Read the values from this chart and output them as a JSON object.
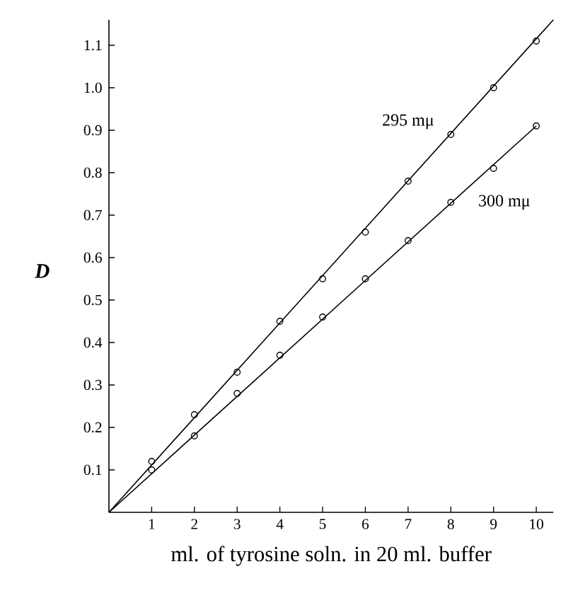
{
  "chart_data": {
    "type": "scatter",
    "xlabel": "ml. of tyrosine soln. in 20 ml. buffer",
    "ylabel": "D",
    "xlim": [
      0,
      10.4
    ],
    "ylim": [
      0,
      1.16
    ],
    "xticks": [
      1,
      2,
      3,
      4,
      5,
      6,
      7,
      8,
      9,
      10
    ],
    "yticks": [
      0.1,
      0.2,
      0.3,
      0.4,
      0.5,
      0.6,
      0.7,
      0.8,
      0.9,
      {
        "value": 1.0,
        "label": "1.0"
      },
      1.1
    ],
    "marker": "circle",
    "grid": false,
    "series": [
      {
        "color": "#000000",
        "x": [
          1,
          2,
          3,
          4,
          5,
          6,
          7,
          8,
          9,
          10
        ],
        "values": [
          0.12,
          0.23,
          0.33,
          0.45,
          0.55,
          0.66,
          0.78,
          0.89,
          1.0,
          1.11
        ]
      },
      {
        "color": "#000000",
        "x": [
          1,
          2,
          3,
          4,
          5,
          6,
          7,
          8,
          9,
          10
        ],
        "values": [
          0.1,
          0.18,
          0.28,
          0.37,
          0.46,
          0.55,
          0.64,
          0.73,
          0.81,
          0.91
        ]
      },
      {
        "type": "line",
        "color": "#000000",
        "marker": "none",
        "x": [
          0,
          10.4
        ],
        "values": [
          0,
          1.16
        ]
      },
      {
        "type": "line",
        "color": "#000000",
        "marker": "none",
        "x": [
          0,
          10
        ],
        "values": [
          0,
          0.91
        ]
      }
    ],
    "annotations": [
      {
        "text": "295 mμ",
        "x": 7.0,
        "y": 0.92
      },
      {
        "text": "300 mμ",
        "x": 9.25,
        "y": 0.73
      }
    ]
  }
}
